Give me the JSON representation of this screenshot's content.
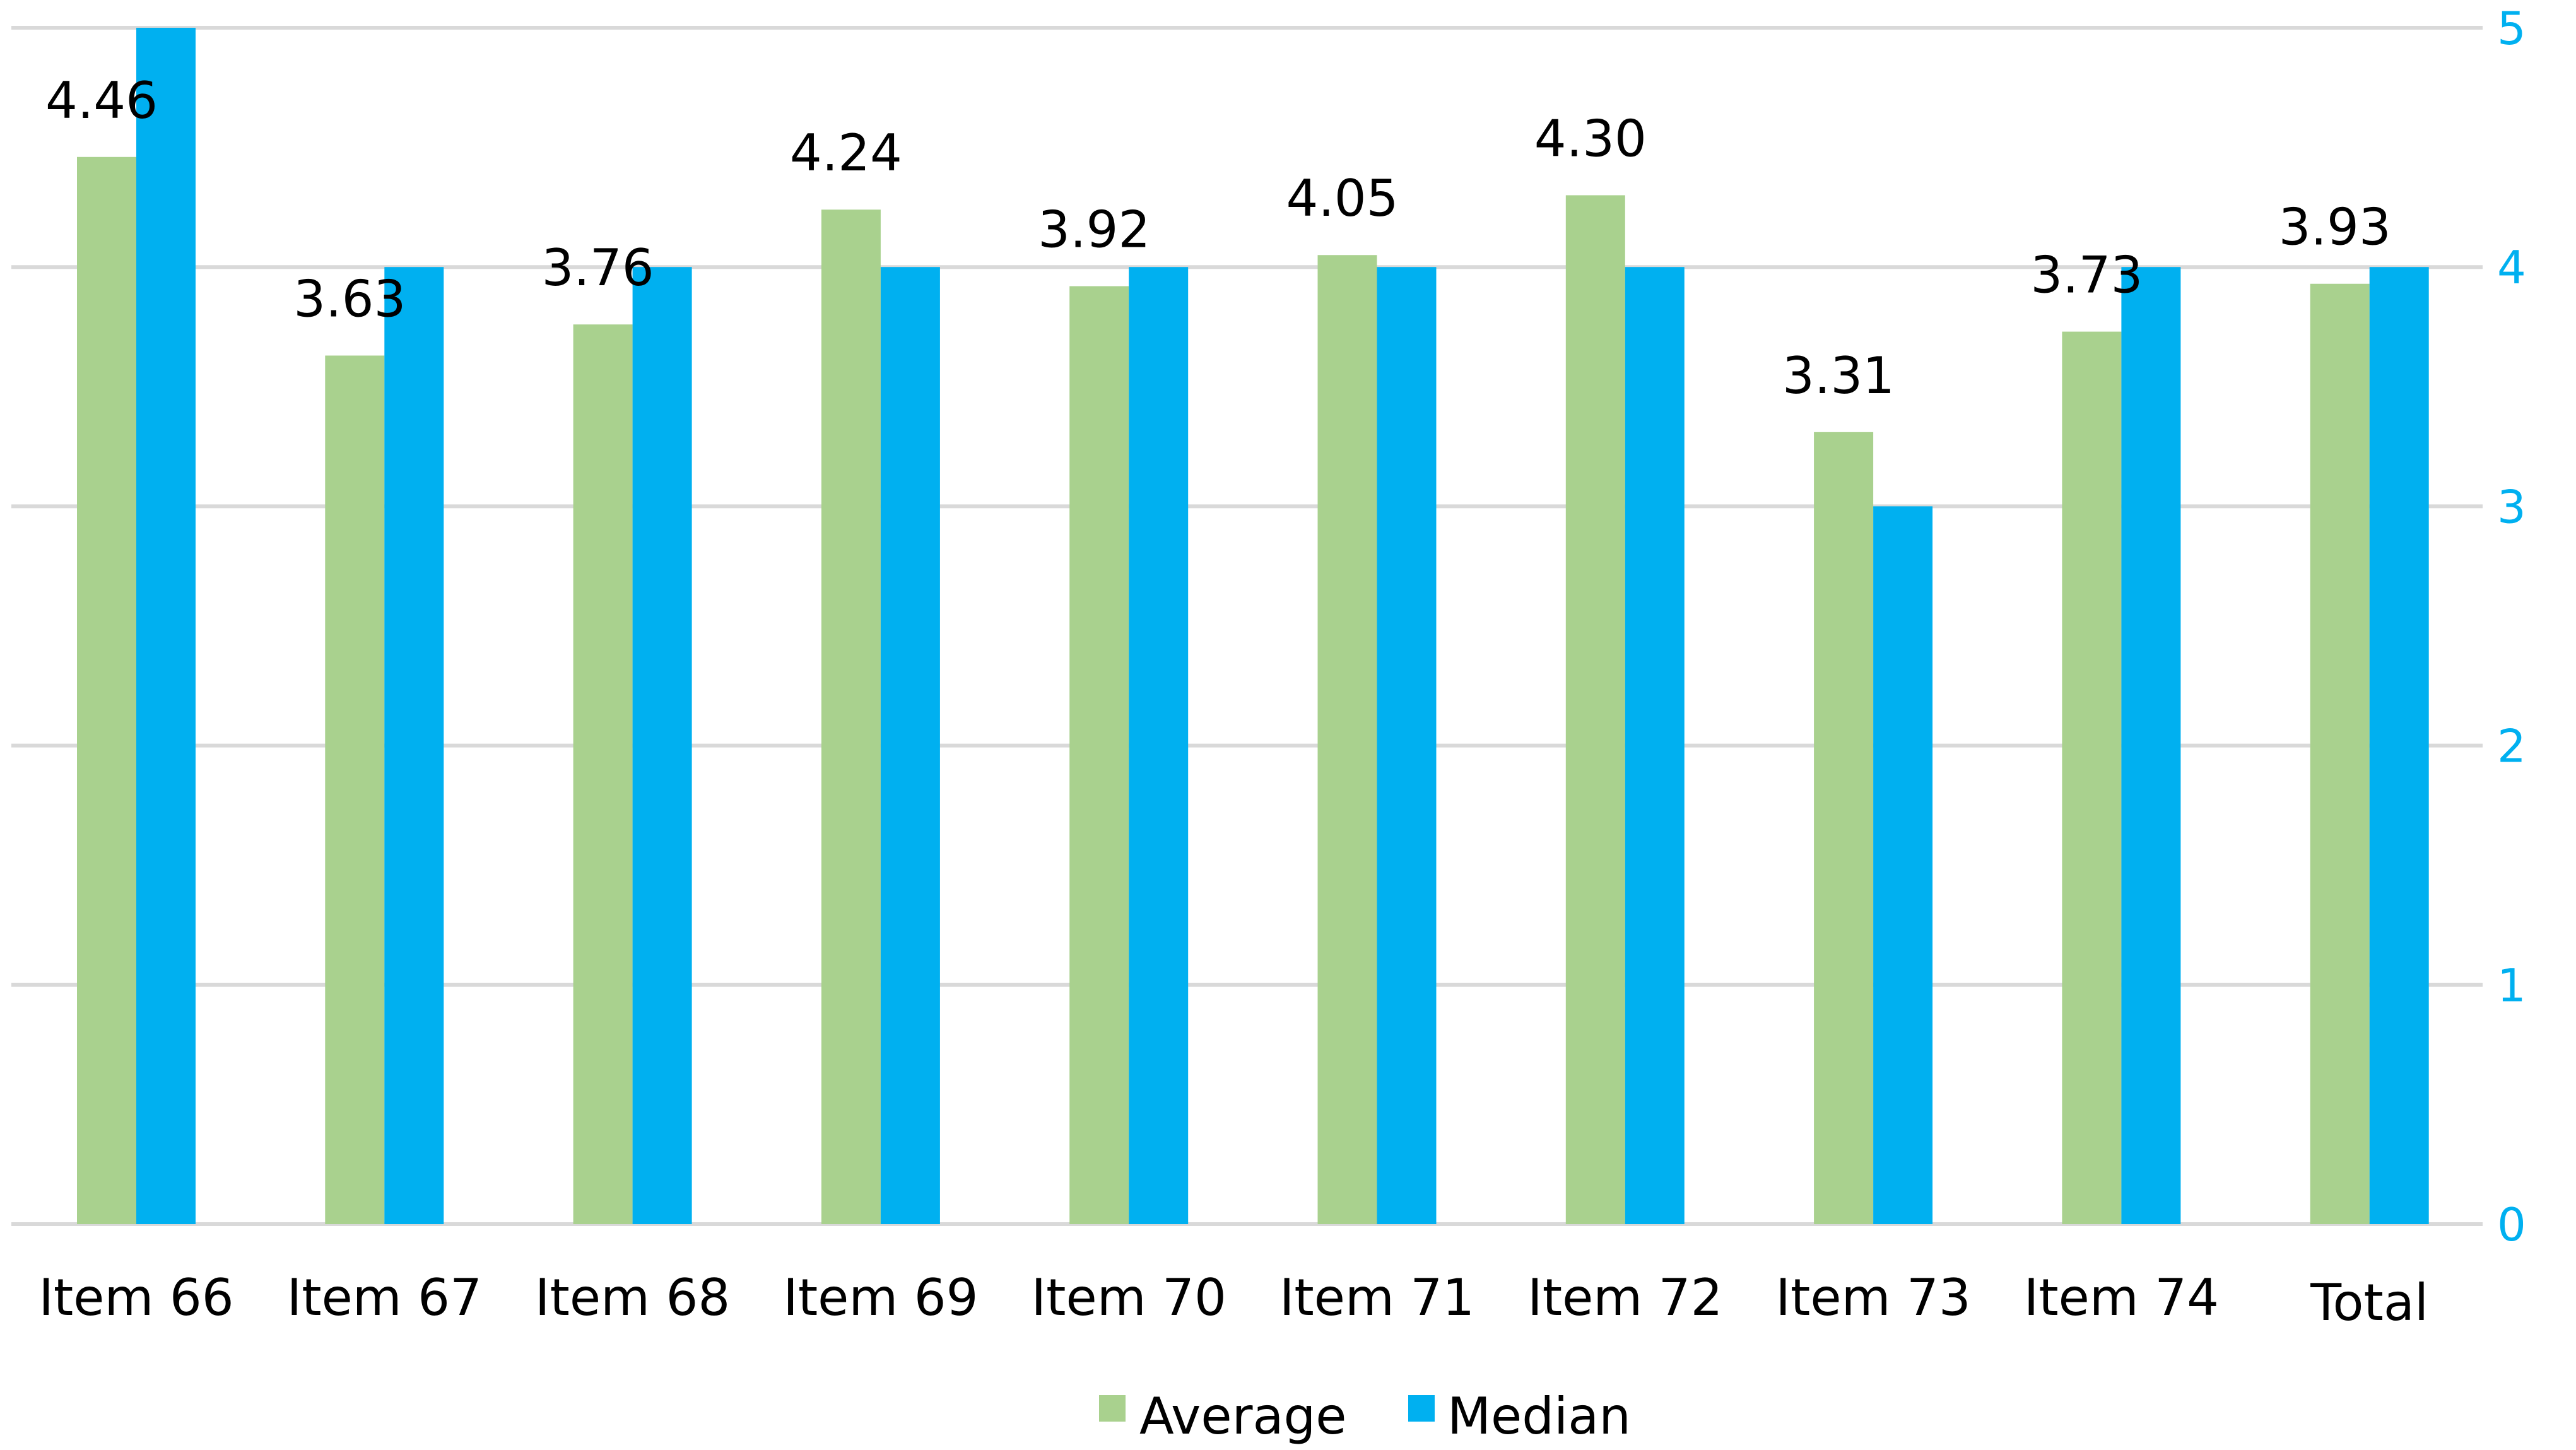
{
  "chart_data": {
    "type": "bar",
    "categories": [
      "Item 66",
      "Item 67",
      "Item 68",
      "Item 69",
      "Item 70",
      "Item 71",
      "Item 72",
      "Item 73",
      "Item 74",
      "Total"
    ],
    "series": [
      {
        "name": "Average",
        "values": [
          4.46,
          3.63,
          3.76,
          4.24,
          3.92,
          4.05,
          4.3,
          3.31,
          3.73,
          3.93
        ],
        "data_labels": [
          "4.46",
          "3.63",
          "3.76",
          "4.24",
          "3.92",
          "4.05",
          "4.30",
          "3.31",
          "3.73",
          "3.93"
        ],
        "color": "#a9d18e"
      },
      {
        "name": "Median",
        "values": [
          5,
          4,
          4,
          4,
          4,
          4,
          4,
          3,
          4,
          4
        ],
        "color": "#00b0f0"
      }
    ],
    "ylim": [
      0,
      5
    ],
    "y_ticks": [
      "0",
      "1",
      "2",
      "3",
      "4",
      "5"
    ],
    "y_axis_side": "right",
    "y_tick_color": "#00b0f0",
    "grid": true,
    "grid_color": "#d9d9d9",
    "legend_position": "bottom",
    "title": "",
    "xlabel": "",
    "ylabel": ""
  }
}
